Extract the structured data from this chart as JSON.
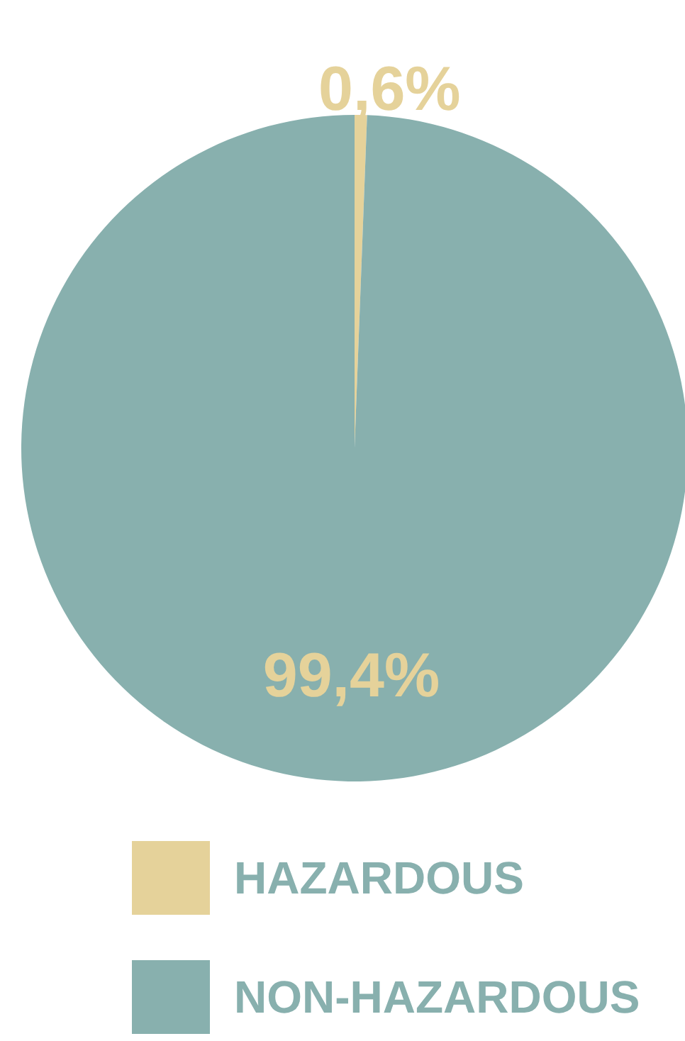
{
  "chart_data": {
    "type": "pie",
    "categories": [
      "HAZARDOUS",
      "NON-HAZARDOUS"
    ],
    "values": [
      0.6,
      99.4
    ],
    "colors": [
      "#e5d29a",
      "#88b0ae"
    ],
    "value_labels": [
      "0,6%",
      "99,4%"
    ],
    "legend": "bottom"
  }
}
